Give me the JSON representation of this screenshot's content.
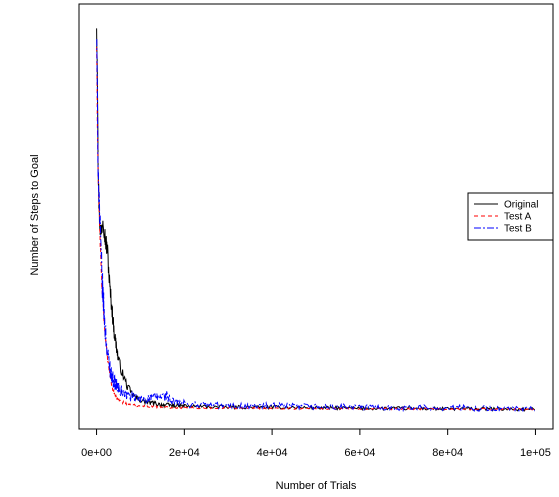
{
  "chart_data": {
    "type": "line",
    "title": "",
    "xlabel": "Number of Trials",
    "ylabel": "Number of Steps to Goal",
    "xlim": [
      -4000,
      104000
    ],
    "ylim": [
      -15,
      355
    ],
    "x_ticks": [
      0,
      20000,
      40000,
      60000,
      80000,
      100000
    ],
    "x_tick_labels": [
      "0e+00",
      "2e+04",
      "4e+04",
      "6e+04",
      "8e+04",
      "1e+05"
    ],
    "y_tick_labels_shown": false,
    "grid": false,
    "legend_position": "right",
    "series": [
      {
        "name": "Original",
        "color": "#000000",
        "dash": "solid",
        "points": [
          [
            0,
            340
          ],
          [
            200,
            300
          ],
          [
            400,
            200
          ],
          [
            700,
            165
          ],
          [
            1000,
            155
          ],
          [
            1500,
            170
          ],
          [
            2000,
            150
          ],
          [
            2500,
            140
          ],
          [
            3000,
            110
          ],
          [
            3500,
            90
          ],
          [
            4000,
            70
          ],
          [
            5000,
            45
          ],
          [
            6000,
            32
          ],
          [
            7000,
            22
          ],
          [
            8000,
            16
          ],
          [
            9000,
            12
          ],
          [
            10000,
            10
          ],
          [
            12000,
            8
          ],
          [
            15000,
            6
          ],
          [
            20000,
            5
          ],
          [
            30000,
            4
          ],
          [
            40000,
            4
          ],
          [
            50000,
            3.5
          ],
          [
            60000,
            3
          ],
          [
            70000,
            3
          ],
          [
            80000,
            2.5
          ],
          [
            90000,
            2.5
          ],
          [
            100000,
            2
          ]
        ],
        "noise": 1.5
      },
      {
        "name": "Test A",
        "color": "#ff0000",
        "dash": "4,3",
        "points": [
          [
            0,
            320
          ],
          [
            200,
            250
          ],
          [
            400,
            200
          ],
          [
            800,
            150
          ],
          [
            1200,
            110
          ],
          [
            1800,
            75
          ],
          [
            2500,
            45
          ],
          [
            3500,
            22
          ],
          [
            4500,
            12
          ],
          [
            6000,
            8
          ],
          [
            8000,
            6
          ],
          [
            10000,
            5
          ],
          [
            15000,
            4
          ],
          [
            20000,
            3.5
          ],
          [
            40000,
            3
          ],
          [
            60000,
            2.5
          ],
          [
            80000,
            2.5
          ],
          [
            100000,
            2
          ]
        ],
        "noise": 0.8
      },
      {
        "name": "Test B",
        "color": "#0000ff",
        "dash": "7,2,2,2",
        "points": [
          [
            0,
            330
          ],
          [
            200,
            260
          ],
          [
            400,
            210
          ],
          [
            800,
            160
          ],
          [
            1200,
            120
          ],
          [
            1800,
            80
          ],
          [
            2500,
            50
          ],
          [
            3500,
            30
          ],
          [
            5000,
            20
          ],
          [
            7000,
            14
          ],
          [
            10000,
            11
          ],
          [
            13000,
            12
          ],
          [
            16000,
            14
          ],
          [
            17000,
            9
          ],
          [
            20000,
            7
          ],
          [
            25000,
            6
          ],
          [
            30000,
            5
          ],
          [
            40000,
            5
          ],
          [
            50000,
            4.5
          ],
          [
            60000,
            4
          ],
          [
            70000,
            3.5
          ],
          [
            80000,
            3.5
          ],
          [
            90000,
            3
          ],
          [
            100000,
            2
          ]
        ],
        "noise": 2.5
      }
    ]
  }
}
